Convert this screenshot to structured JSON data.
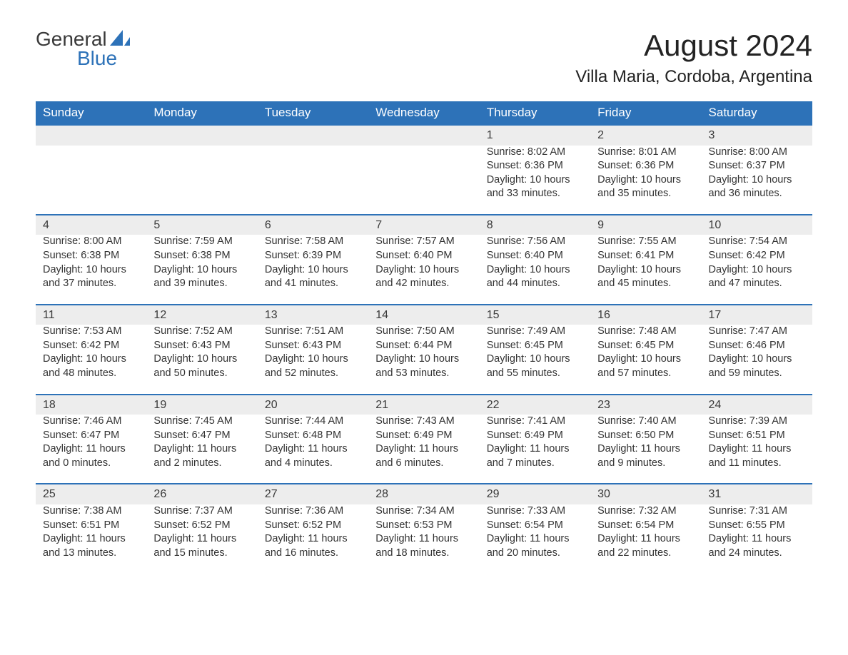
{
  "logo": {
    "top": "General",
    "bottom": "Blue"
  },
  "title": "August 2024",
  "location": "Villa Maria, Cordoba, Argentina",
  "colors": {
    "header_bg": "#2d72b8",
    "header_text": "#ffffff",
    "daynum_bg": "#ededed",
    "daynum_border": "#2d72b8",
    "body_text": "#333333",
    "logo_blue": "#2d72b8",
    "logo_gray": "#3a3a3a",
    "page_bg": "#ffffff"
  },
  "weekdays": [
    "Sunday",
    "Monday",
    "Tuesday",
    "Wednesday",
    "Thursday",
    "Friday",
    "Saturday"
  ],
  "weeks": [
    {
      "days": [
        null,
        null,
        null,
        null,
        {
          "n": "1",
          "sunrise": "8:02 AM",
          "sunset": "6:36 PM",
          "dl": "10 hours and 33 minutes."
        },
        {
          "n": "2",
          "sunrise": "8:01 AM",
          "sunset": "6:36 PM",
          "dl": "10 hours and 35 minutes."
        },
        {
          "n": "3",
          "sunrise": "8:00 AM",
          "sunset": "6:37 PM",
          "dl": "10 hours and 36 minutes."
        }
      ]
    },
    {
      "days": [
        {
          "n": "4",
          "sunrise": "8:00 AM",
          "sunset": "6:38 PM",
          "dl": "10 hours and 37 minutes."
        },
        {
          "n": "5",
          "sunrise": "7:59 AM",
          "sunset": "6:38 PM",
          "dl": "10 hours and 39 minutes."
        },
        {
          "n": "6",
          "sunrise": "7:58 AM",
          "sunset": "6:39 PM",
          "dl": "10 hours and 41 minutes."
        },
        {
          "n": "7",
          "sunrise": "7:57 AM",
          "sunset": "6:40 PM",
          "dl": "10 hours and 42 minutes."
        },
        {
          "n": "8",
          "sunrise": "7:56 AM",
          "sunset": "6:40 PM",
          "dl": "10 hours and 44 minutes."
        },
        {
          "n": "9",
          "sunrise": "7:55 AM",
          "sunset": "6:41 PM",
          "dl": "10 hours and 45 minutes."
        },
        {
          "n": "10",
          "sunrise": "7:54 AM",
          "sunset": "6:42 PM",
          "dl": "10 hours and 47 minutes."
        }
      ]
    },
    {
      "days": [
        {
          "n": "11",
          "sunrise": "7:53 AM",
          "sunset": "6:42 PM",
          "dl": "10 hours and 48 minutes."
        },
        {
          "n": "12",
          "sunrise": "7:52 AM",
          "sunset": "6:43 PM",
          "dl": "10 hours and 50 minutes."
        },
        {
          "n": "13",
          "sunrise": "7:51 AM",
          "sunset": "6:43 PM",
          "dl": "10 hours and 52 minutes."
        },
        {
          "n": "14",
          "sunrise": "7:50 AM",
          "sunset": "6:44 PM",
          "dl": "10 hours and 53 minutes."
        },
        {
          "n": "15",
          "sunrise": "7:49 AM",
          "sunset": "6:45 PM",
          "dl": "10 hours and 55 minutes."
        },
        {
          "n": "16",
          "sunrise": "7:48 AM",
          "sunset": "6:45 PM",
          "dl": "10 hours and 57 minutes."
        },
        {
          "n": "17",
          "sunrise": "7:47 AM",
          "sunset": "6:46 PM",
          "dl": "10 hours and 59 minutes."
        }
      ]
    },
    {
      "days": [
        {
          "n": "18",
          "sunrise": "7:46 AM",
          "sunset": "6:47 PM",
          "dl": "11 hours and 0 minutes."
        },
        {
          "n": "19",
          "sunrise": "7:45 AM",
          "sunset": "6:47 PM",
          "dl": "11 hours and 2 minutes."
        },
        {
          "n": "20",
          "sunrise": "7:44 AM",
          "sunset": "6:48 PM",
          "dl": "11 hours and 4 minutes."
        },
        {
          "n": "21",
          "sunrise": "7:43 AM",
          "sunset": "6:49 PM",
          "dl": "11 hours and 6 minutes."
        },
        {
          "n": "22",
          "sunrise": "7:41 AM",
          "sunset": "6:49 PM",
          "dl": "11 hours and 7 minutes."
        },
        {
          "n": "23",
          "sunrise": "7:40 AM",
          "sunset": "6:50 PM",
          "dl": "11 hours and 9 minutes."
        },
        {
          "n": "24",
          "sunrise": "7:39 AM",
          "sunset": "6:51 PM",
          "dl": "11 hours and 11 minutes."
        }
      ]
    },
    {
      "days": [
        {
          "n": "25",
          "sunrise": "7:38 AM",
          "sunset": "6:51 PM",
          "dl": "11 hours and 13 minutes."
        },
        {
          "n": "26",
          "sunrise": "7:37 AM",
          "sunset": "6:52 PM",
          "dl": "11 hours and 15 minutes."
        },
        {
          "n": "27",
          "sunrise": "7:36 AM",
          "sunset": "6:52 PM",
          "dl": "11 hours and 16 minutes."
        },
        {
          "n": "28",
          "sunrise": "7:34 AM",
          "sunset": "6:53 PM",
          "dl": "11 hours and 18 minutes."
        },
        {
          "n": "29",
          "sunrise": "7:33 AM",
          "sunset": "6:54 PM",
          "dl": "11 hours and 20 minutes."
        },
        {
          "n": "30",
          "sunrise": "7:32 AM",
          "sunset": "6:54 PM",
          "dl": "11 hours and 22 minutes."
        },
        {
          "n": "31",
          "sunrise": "7:31 AM",
          "sunset": "6:55 PM",
          "dl": "11 hours and 24 minutes."
        }
      ]
    }
  ],
  "labels": {
    "sunrise": "Sunrise: ",
    "sunset": "Sunset: ",
    "daylight": "Daylight: "
  }
}
